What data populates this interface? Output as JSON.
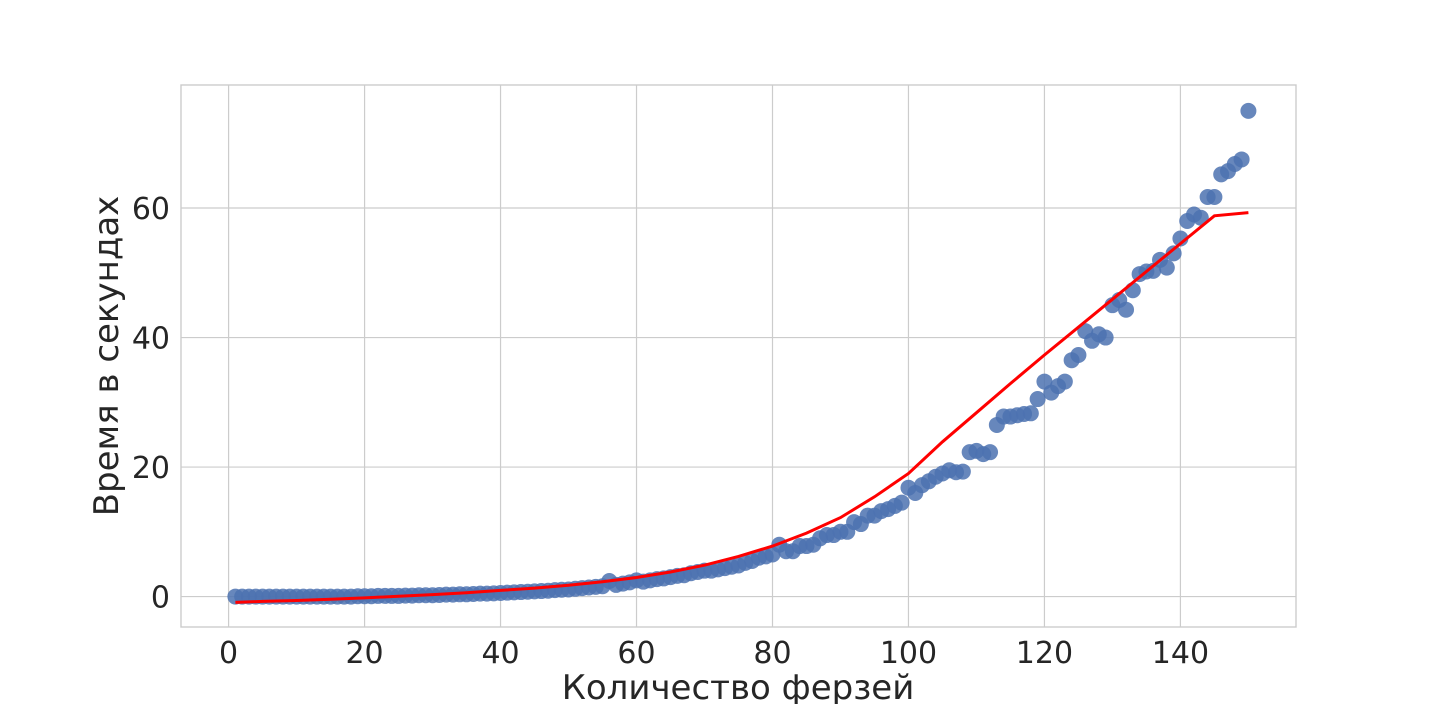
{
  "chart_data": {
    "type": "scatter",
    "xlabel": "Количество ферзей",
    "ylabel": "Время в секундах",
    "xlim": [
      -7,
      157
    ],
    "ylim": [
      -4.7,
      79
    ],
    "xticks": [
      0,
      20,
      40,
      60,
      80,
      100,
      120,
      140
    ],
    "yticks": [
      0,
      20,
      40,
      60
    ],
    "grid": true,
    "colors": {
      "points": "#4c72b0",
      "fit_line": "#ff0000",
      "grid": "#cccccc",
      "text": "#262626"
    },
    "series": [
      {
        "kind": "scatter",
        "x": [
          1,
          2,
          3,
          4,
          5,
          6,
          7,
          8,
          9,
          10,
          11,
          12,
          13,
          14,
          15,
          16,
          17,
          18,
          19,
          20,
          21,
          22,
          23,
          24,
          25,
          26,
          27,
          28,
          29,
          30,
          31,
          32,
          33,
          34,
          35,
          36,
          37,
          38,
          39,
          40,
          41,
          42,
          43,
          44,
          45,
          46,
          47,
          48,
          49,
          50,
          51,
          52,
          53,
          54,
          55,
          56,
          57,
          58,
          59,
          60,
          61,
          62,
          63,
          64,
          65,
          66,
          67,
          68,
          69,
          70,
          71,
          72,
          73,
          74,
          75,
          76,
          77,
          78,
          79,
          80,
          81,
          82,
          83,
          84,
          85,
          86,
          87,
          88,
          89,
          90,
          91,
          92,
          93,
          94,
          95,
          96,
          97,
          98,
          99,
          100,
          101,
          102,
          103,
          104,
          105,
          106,
          107,
          108,
          109,
          110,
          111,
          112,
          113,
          114,
          115,
          116,
          117,
          118,
          119,
          120,
          121,
          122,
          123,
          124,
          125,
          126,
          127,
          128,
          129,
          130,
          131,
          132,
          133,
          134,
          135,
          136,
          137,
          138,
          139,
          140,
          141,
          142,
          143,
          144,
          145,
          146,
          147,
          148,
          149,
          150
        ],
        "y": [
          0,
          0,
          0,
          0,
          0,
          0,
          0,
          0,
          0,
          0,
          0,
          0,
          0,
          0,
          0,
          0,
          0,
          0,
          0.05,
          0.05,
          0.05,
          0.1,
          0.1,
          0.1,
          0.1,
          0.15,
          0.15,
          0.2,
          0.2,
          0.2,
          0.25,
          0.3,
          0.3,
          0.35,
          0.35,
          0.4,
          0.45,
          0.45,
          0.5,
          0.55,
          0.6,
          0.65,
          0.7,
          0.75,
          0.8,
          0.85,
          0.9,
          1.0,
          1.05,
          1.1,
          1.2,
          1.3,
          1.4,
          1.5,
          1.6,
          2.4,
          1.8,
          2.0,
          2.2,
          2.5,
          2.3,
          2.5,
          2.7,
          2.8,
          3.0,
          3.2,
          3.3,
          3.6,
          3.8,
          4.0,
          4.0,
          4.2,
          4.4,
          4.6,
          4.8,
          5.2,
          5.5,
          6.0,
          6.2,
          6.5,
          8.0,
          7.0,
          7.0,
          7.8,
          7.8,
          8.0,
          9.0,
          9.5,
          9.5,
          10.0,
          10.0,
          11.5,
          11.2,
          12.5,
          12.5,
          13.2,
          13.5,
          14.0,
          14.5,
          16.8,
          16.0,
          17.2,
          17.8,
          18.5,
          19.0,
          19.5,
          19.2,
          19.3,
          22.3,
          22.5,
          22.0,
          22.3,
          26.5,
          27.8,
          27.8,
          28.0,
          28.2,
          28.3,
          30.5,
          33.2,
          31.5,
          32.5,
          33.2,
          36.5,
          37.3,
          41.0,
          39.5,
          40.5,
          40.0,
          45.0,
          45.8,
          44.3,
          47.3,
          49.8,
          50.2,
          50.3,
          52.0,
          50.8,
          53.0,
          55.3,
          58.0,
          59.0,
          58.5,
          61.7,
          61.7,
          65.2,
          65.7,
          66.8,
          67.5,
          75.0
        ]
      },
      {
        "kind": "line",
        "x": [
          1,
          5,
          10,
          15,
          20,
          25,
          30,
          35,
          40,
          45,
          50,
          55,
          60,
          65,
          70,
          75,
          80,
          85,
          90,
          95,
          100,
          105,
          110,
          115,
          120,
          125,
          130,
          135,
          140,
          145,
          150
        ],
        "y": [
          -0.9,
          -0.75,
          -0.6,
          -0.4,
          -0.2,
          0.05,
          0.3,
          0.6,
          0.95,
          1.3,
          1.75,
          2.3,
          2.95,
          3.8,
          4.85,
          6.2,
          7.8,
          9.8,
          12.2,
          15.4,
          19.0,
          23.9,
          28.4,
          32.9,
          37.3,
          41.6,
          45.9,
          50.2,
          54.5,
          58.8,
          59.3
        ]
      }
    ]
  }
}
